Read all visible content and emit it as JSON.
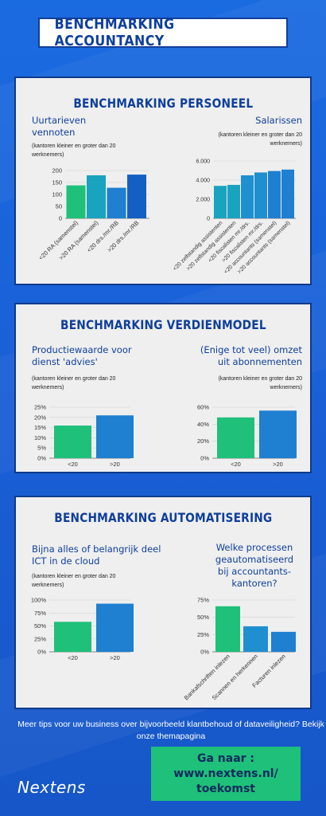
{
  "page_title": "BENCHMARKING ACCOUNTANCY",
  "colors": {
    "green": "#1fc07a",
    "teal": "#19a3bf",
    "blue": "#1f7fd1",
    "darkblue": "#145fc4",
    "title": "#0f3f9c"
  },
  "sections": [
    {
      "title": "BENCHMARKING PERSONEEL",
      "charts": [
        {
          "title": "Uurtarieven vennoten",
          "note": "(kantoren kleiner en groter dan 20 werknemers)"
        },
        {
          "title": "Salarissen",
          "note": "(kantoren kleiner en groter dan 20 werknemers)"
        }
      ]
    },
    {
      "title": "BENCHMARKING VERDIENMODEL",
      "charts": [
        {
          "title": "Productiewaarde voor dienst 'advies'",
          "note": "(kantoren kleiner en groter dan 20 werknemers)"
        },
        {
          "title": "(Enige tot veel) omzet uit abonnementen",
          "note": "(kantoren kleiner en groter dan 20 werknemers)"
        }
      ]
    },
    {
      "title": "BENCHMARKING AUTOMATISERING",
      "charts": [
        {
          "title": "Bijna alles of belangrijk deel ICT in de cloud",
          "note": "(kantoren kleiner en groter dan 20 werknemers)"
        },
        {
          "title": "Welke processen geautomatiseerd bij accountants-kantoren?",
          "note": ""
        }
      ]
    }
  ],
  "chart_data": [
    {
      "type": "bar",
      "categories": [
        "<20 RA (samenstel)",
        ">20 RA (samenstel)",
        "<20 drs./mr./RB",
        ">20 drs./mr./RB"
      ],
      "values": [
        138,
        180,
        128,
        183
      ],
      "yticks": [
        "0",
        "50",
        "100",
        "150",
        "200"
      ],
      "ylim": [
        0,
        200
      ],
      "colors": [
        "#1fc07a",
        "#19a3bf",
        "#1f7fd1",
        "#145fc4"
      ]
    },
    {
      "type": "bar",
      "categories": [
        "<20 zelfstandig assistenten",
        ">20 zelfstandig assistenten",
        "<20 fiscalisten mr./drs.",
        ">20 fiscalisten mr./drs.",
        "<20 accountants (samenstel)",
        ">20 accountants (samenstel)"
      ],
      "values": [
        3400,
        3500,
        4500,
        4800,
        4950,
        5100
      ],
      "yticks": [
        "0",
        "2.000",
        "4.000",
        "6.000"
      ],
      "ylim": [
        0,
        6000
      ],
      "colors": [
        "#19a3bf",
        "#19a3bf",
        "#1f8fd0",
        "#1f8fd0",
        "#1f7fd1",
        "#1f7fd1"
      ]
    },
    {
      "type": "bar",
      "categories": [
        "<20",
        ">20"
      ],
      "values": [
        16,
        21
      ],
      "yticks": [
        "0%",
        "5%",
        "10%",
        "15%",
        "20%",
        "25%"
      ],
      "ylim": [
        0,
        25
      ],
      "colors": [
        "#1fc07a",
        "#1f7fd1"
      ]
    },
    {
      "type": "bar",
      "categories": [
        "<20",
        ">20"
      ],
      "values": [
        48,
        56
      ],
      "yticks": [
        "0%",
        "20%",
        "40%",
        "60%"
      ],
      "ylim": [
        0,
        60
      ],
      "colors": [
        "#1fc07a",
        "#1f7fd1"
      ]
    },
    {
      "type": "bar",
      "categories": [
        "<20",
        ">20"
      ],
      "values": [
        58,
        93
      ],
      "yticks": [
        "0%",
        "25%",
        "50%",
        "75%",
        "100%"
      ],
      "ylim": [
        0,
        100
      ],
      "colors": [
        "#1fc07a",
        "#1f7fd1"
      ]
    },
    {
      "type": "bar",
      "categories": [
        "Bankafschriften inlezen",
        "Scannen en herkennen",
        "Facturen inlezen"
      ],
      "values": [
        66,
        37,
        29
      ],
      "yticks": [
        "0%",
        "25%",
        "50%",
        "75%"
      ],
      "ylim": [
        0,
        75
      ],
      "colors": [
        "#1fc07a",
        "#1f8fd0",
        "#1f7fd1"
      ]
    }
  ],
  "footer": {
    "text": "Meer tips voor uw business over bijvoorbeeld klantbehoud of dataveiligheid? Bekijk onze themapagina",
    "cta_line1": "Ga naar :",
    "cta_line2": "www.nextens.nl/",
    "cta_line3": "toekomst",
    "logo": "Nextens"
  }
}
